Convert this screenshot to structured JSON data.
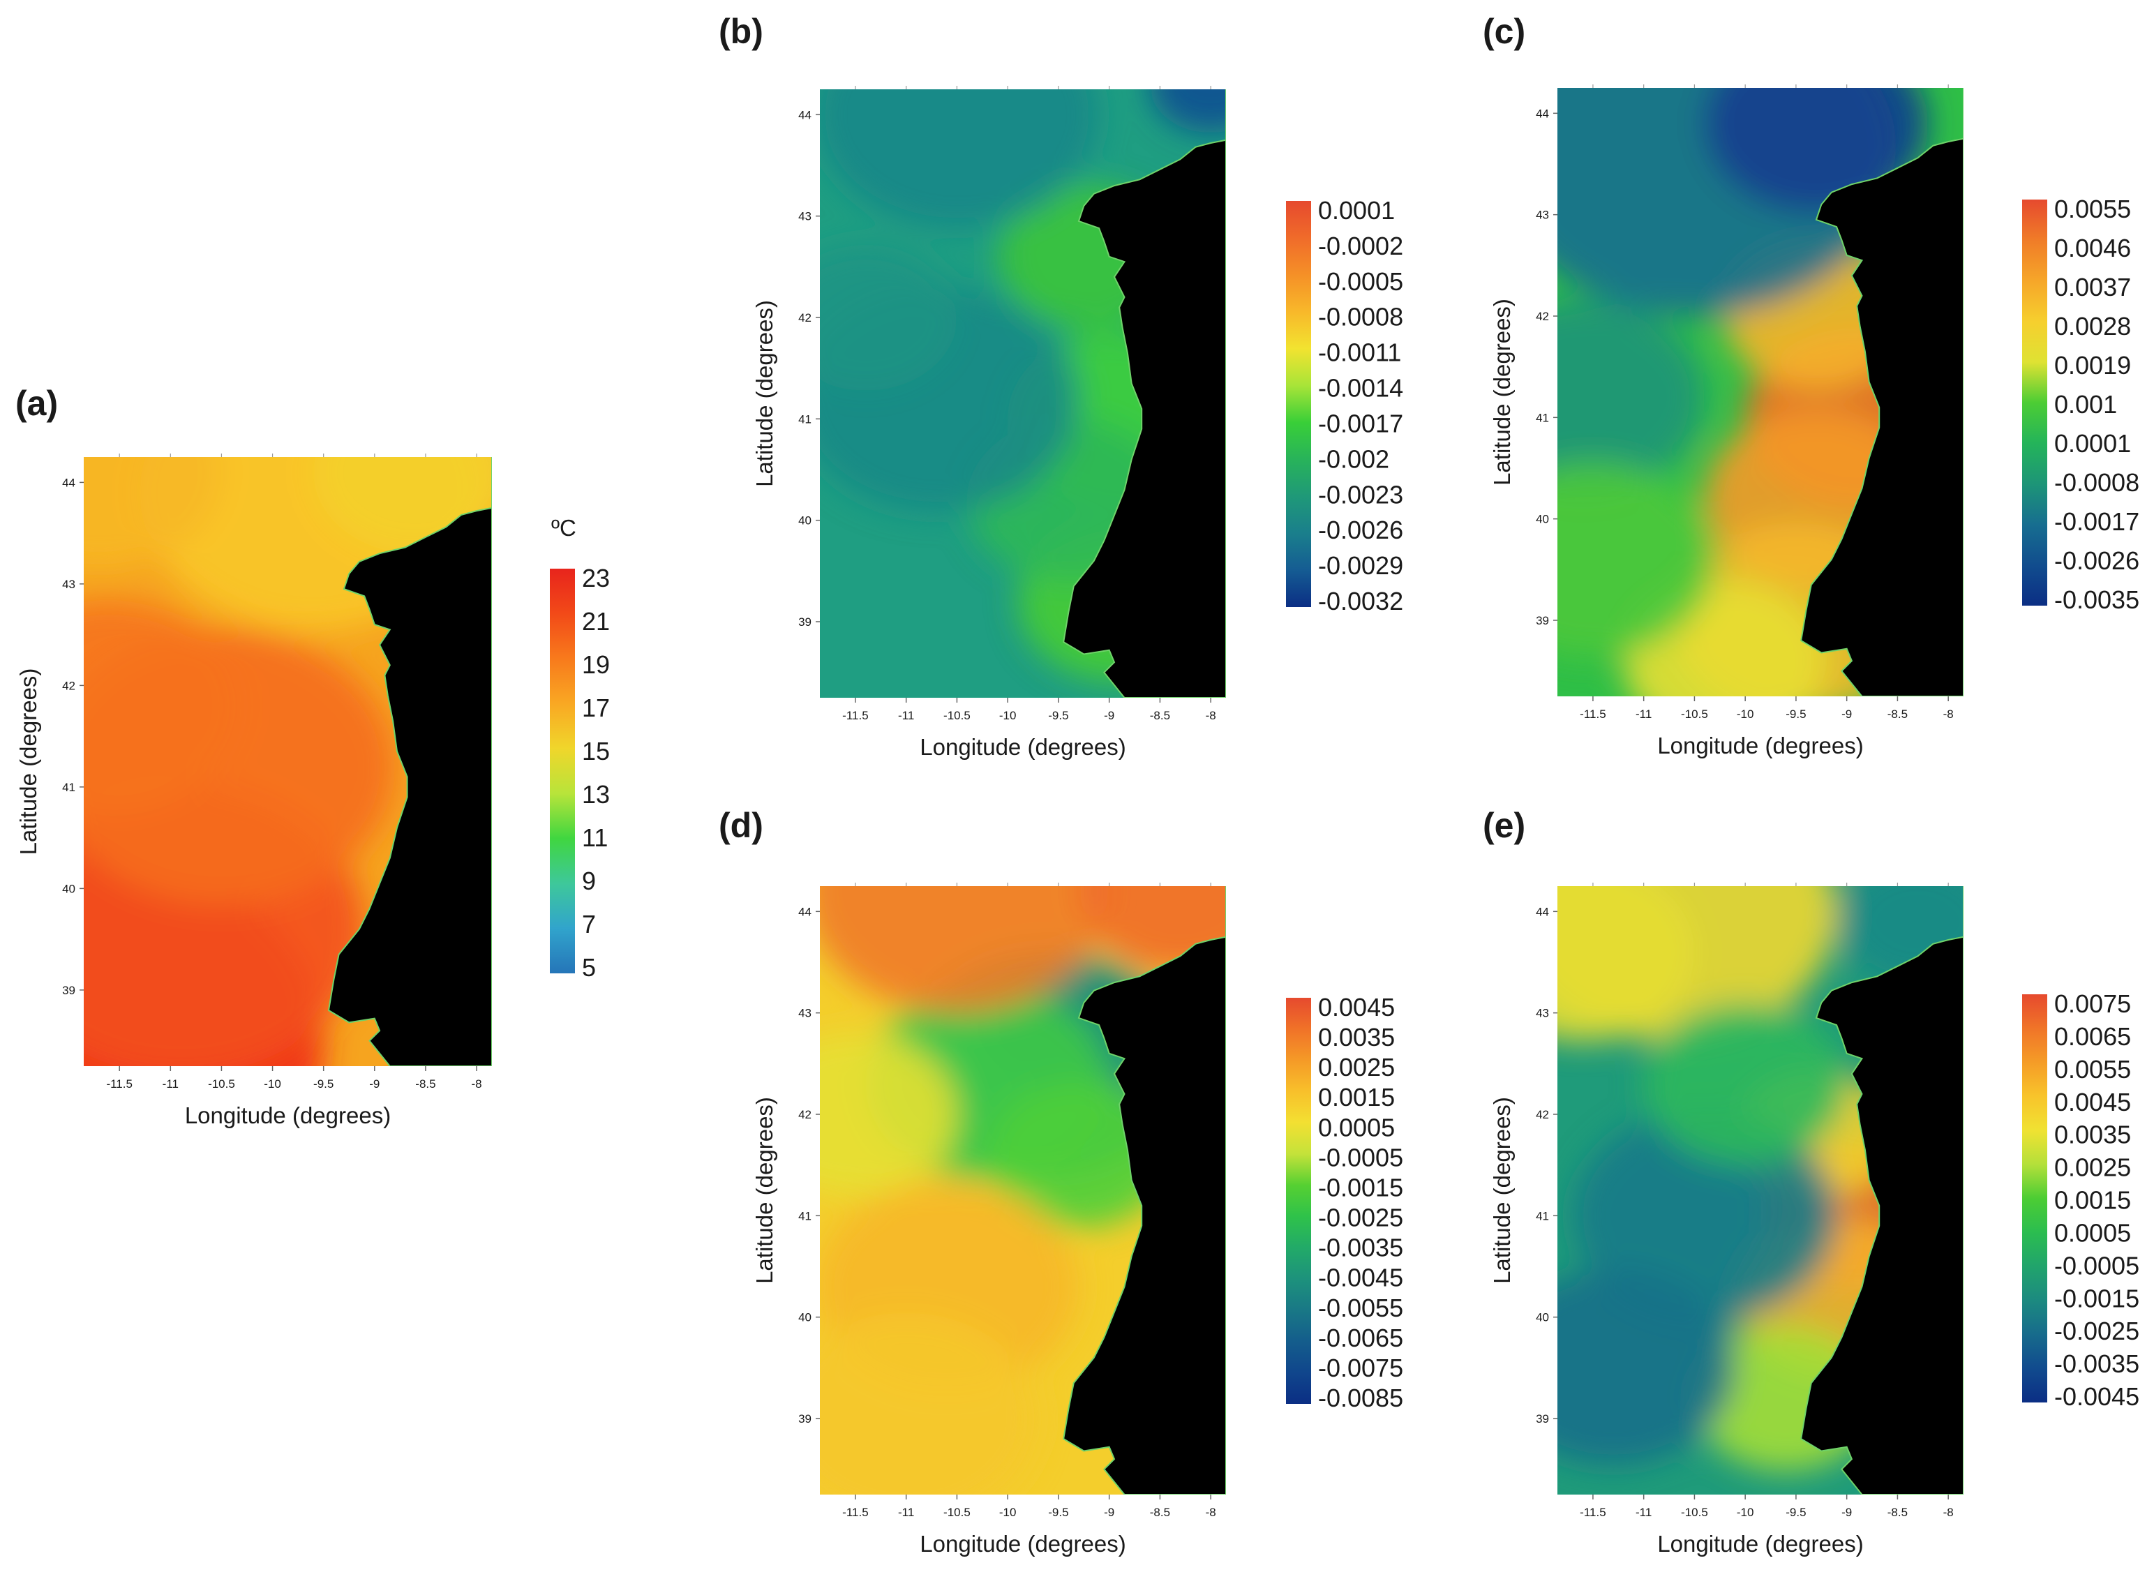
{
  "chart_data": [
    {
      "type": "heatmap",
      "panel": "(a)",
      "xlabel": "Longitude (degrees)",
      "ylabel": "Latitude (degrees)",
      "xticks": [
        "-11.5",
        "-11",
        "-10.5",
        "-10",
        "-9.5",
        "-9",
        "-8.5",
        "-8"
      ],
      "yticks": [
        "44",
        "43",
        "42",
        "41",
        "40",
        "39"
      ],
      "xlim": [
        -11.85,
        -7.85
      ],
      "ylim": [
        38.25,
        44.25
      ],
      "colorbar": {
        "unit": "ºC",
        "labels": [
          "23",
          "21",
          "19",
          "17",
          "15",
          "13",
          "11",
          "9",
          "7",
          "5"
        ],
        "colors": [
          "#e8241c",
          "#f24a18",
          "#f87a1c",
          "#f9a823",
          "#f0d62b",
          "#b8e43a",
          "#40d640",
          "#3ec89a",
          "#31a4cc",
          "#2575b8"
        ]
      },
      "field": {
        "base": "#f6a41f",
        "blobs": [
          {
            "lon": -11.8,
            "lat": 38.5,
            "r": 2.3,
            "c": "#f02818"
          },
          {
            "lon": -10.9,
            "lat": 39.6,
            "r": 1.8,
            "c": "#f3501c"
          },
          {
            "lon": -10.5,
            "lat": 41.2,
            "r": 1.7,
            "c": "#f56d1e"
          },
          {
            "lon": -11.6,
            "lat": 41.8,
            "r": 1.3,
            "c": "#f6731e"
          },
          {
            "lon": -9.6,
            "lat": 43.9,
            "r": 1.7,
            "c": "#f8c82a"
          },
          {
            "lon": -8.6,
            "lat": 44.1,
            "r": 1.0,
            "c": "#f4d02b"
          },
          {
            "lon": -11.7,
            "lat": 44.1,
            "r": 1.2,
            "c": "#f7b826"
          }
        ]
      }
    },
    {
      "type": "heatmap",
      "panel": "(b)",
      "xlabel": "Longitude (degrees)",
      "ylabel": "Latitude (degrees)",
      "xticks": [
        "-11.5",
        "-11",
        "-10.5",
        "-10",
        "-9.5",
        "-9",
        "-8.5",
        "-8"
      ],
      "yticks": [
        "44",
        "43",
        "42",
        "41",
        "40",
        "39"
      ],
      "xlim": [
        -11.85,
        -7.85
      ],
      "ylim": [
        38.25,
        44.25
      ],
      "colorbar": {
        "labels": [
          "0.0001",
          "-0.0002",
          "-0.0005",
          "-0.0008",
          "-0.0011",
          "-0.0014",
          "-0.0017",
          "-0.002",
          "-0.0023",
          "-0.0026",
          "-0.0029",
          "-0.0032"
        ],
        "colors": [
          "#e64a2e",
          "#f06b2a",
          "#f59027",
          "#f8b82a",
          "#f2e330",
          "#a8e438",
          "#39cf38",
          "#28b35a",
          "#1f9978",
          "#1a7f8c",
          "#155c93",
          "#0b2e84"
        ]
      },
      "field": {
        "base": "#1f9e82",
        "blobs": [
          {
            "lon": -8.9,
            "lat": 41.0,
            "r": 1.1,
            "c": "#3fcf3a"
          },
          {
            "lon": -8.9,
            "lat": 39.2,
            "r": 1.0,
            "c": "#45cc35"
          },
          {
            "lon": -9.2,
            "lat": 42.6,
            "r": 0.9,
            "c": "#3cc43c"
          },
          {
            "lon": -9.4,
            "lat": 40.2,
            "r": 1.0,
            "c": "#2fb856"
          },
          {
            "lon": -10.7,
            "lat": 41.2,
            "r": 1.4,
            "c": "#1b8a86"
          },
          {
            "lon": -11.4,
            "lat": 42.0,
            "r": 0.9,
            "c": "#1e9484"
          },
          {
            "lon": -8.0,
            "lat": 44.3,
            "r": 0.6,
            "c": "#134f92"
          },
          {
            "lon": -10.5,
            "lat": 44.0,
            "r": 1.4,
            "c": "#1b8788"
          }
        ]
      }
    },
    {
      "type": "heatmap",
      "panel": "(c)",
      "xlabel": "Longitude (degrees)",
      "ylabel": "Latitude (degrees)",
      "xticks": [
        "-11.5",
        "-11",
        "-10.5",
        "-10",
        "-9.5",
        "-9",
        "-8.5",
        "-8"
      ],
      "yticks": [
        "44",
        "43",
        "42",
        "41",
        "40",
        "39"
      ],
      "xlim": [
        -11.85,
        -7.85
      ],
      "ylim": [
        38.25,
        44.25
      ],
      "colorbar": {
        "labels": [
          "0.0055",
          "0.0046",
          "0.0037",
          "0.0028",
          "0.0019",
          "0.001",
          "0.0001",
          "-0.0008",
          "-0.0017",
          "-0.0026",
          "-0.0035"
        ],
        "colors": [
          "#e64a2e",
          "#f07c28",
          "#f6a629",
          "#f6cf2e",
          "#dfe233",
          "#4ccd34",
          "#24b45a",
          "#1d9577",
          "#176e90",
          "#114d8e",
          "#0b2e84"
        ]
      },
      "field": {
        "base": "#2fbf47",
        "blobs": [
          {
            "lon": -8.9,
            "lat": 41.0,
            "r": 1.1,
            "c": "#f26c24"
          },
          {
            "lon": -9.3,
            "lat": 40.2,
            "r": 1.1,
            "c": "#f49a28"
          },
          {
            "lon": -9.3,
            "lat": 42.0,
            "r": 0.9,
            "c": "#f5b42a"
          },
          {
            "lon": -9.5,
            "lat": 39.0,
            "r": 1.2,
            "c": "#f5b82a"
          },
          {
            "lon": -10.2,
            "lat": 38.6,
            "r": 1.0,
            "c": "#e8df34"
          },
          {
            "lon": -10.5,
            "lat": 43.6,
            "r": 2.0,
            "c": "#1a6f8f"
          },
          {
            "lon": -9.3,
            "lat": 43.9,
            "r": 1.1,
            "c": "#123f8e"
          },
          {
            "lon": -11.6,
            "lat": 41.2,
            "r": 1.2,
            "c": "#1f9478"
          },
          {
            "lon": -11.5,
            "lat": 39.6,
            "r": 1.2,
            "c": "#4cc83c"
          }
        ]
      }
    },
    {
      "type": "heatmap",
      "panel": "(d)",
      "xlabel": "Longitude (degrees)",
      "ylabel": "Latitude (degrees)",
      "xticks": [
        "-11.5",
        "-11",
        "-10.5",
        "-10",
        "-9.5",
        "-9",
        "-8.5",
        "-8"
      ],
      "yticks": [
        "44",
        "43",
        "42",
        "41",
        "40",
        "39"
      ],
      "xlim": [
        -11.85,
        -7.85
      ],
      "ylim": [
        38.25,
        44.25
      ],
      "colorbar": {
        "labels": [
          "0.0045",
          "0.0035",
          "0.0025",
          "0.0015",
          "0.0005",
          "-0.0005",
          "-0.0015",
          "-0.0025",
          "-0.0035",
          "-0.0045",
          "-0.0055",
          "-0.0065",
          "-0.0075",
          "-0.0085"
        ],
        "colors": [
          "#e64a2e",
          "#f07228",
          "#f59a27",
          "#f8c02b",
          "#f3e032",
          "#c4e23a",
          "#56d032",
          "#2fc24a",
          "#22aa68",
          "#1d927c",
          "#197886",
          "#145d8c",
          "#10468c",
          "#0b2e84"
        ]
      },
      "field": {
        "base": "#f4ce2c",
        "blobs": [
          {
            "lon": -9.4,
            "lat": 42.9,
            "r": 0.8,
            "c": "#123b8c"
          },
          {
            "lon": -9.6,
            "lat": 42.5,
            "r": 1.4,
            "c": "#1f9a76"
          },
          {
            "lon": -10.2,
            "lat": 42.3,
            "r": 1.2,
            "c": "#3ec948"
          },
          {
            "lon": -9.3,
            "lat": 41.6,
            "r": 0.9,
            "c": "#4ecf3a"
          },
          {
            "lon": -11.5,
            "lat": 42.0,
            "r": 1.0,
            "c": "#e6e034"
          },
          {
            "lon": -10.6,
            "lat": 40.3,
            "r": 1.3,
            "c": "#f6b82a"
          },
          {
            "lon": -10.5,
            "lat": 44.2,
            "r": 1.5,
            "c": "#f07c28"
          },
          {
            "lon": -8.3,
            "lat": 44.2,
            "r": 1.0,
            "c": "#ef6c2a"
          },
          {
            "lon": -11.0,
            "lat": 39.0,
            "r": 1.3,
            "c": "#f5c82c"
          }
        ]
      }
    },
    {
      "type": "heatmap",
      "panel": "(e)",
      "xlabel": "Longitude (degrees)",
      "ylabel": "Latitude (degrees)",
      "xticks": [
        "-11.5",
        "-11",
        "-10.5",
        "-10",
        "-9.5",
        "-9",
        "-8.5",
        "-8"
      ],
      "yticks": [
        "44",
        "43",
        "42",
        "41",
        "40",
        "39"
      ],
      "xlim": [
        -11.85,
        -7.85
      ],
      "ylim": [
        38.25,
        44.25
      ],
      "colorbar": {
        "labels": [
          "0.0075",
          "0.0065",
          "0.0055",
          "0.0045",
          "0.0035",
          "0.0025",
          "0.0015",
          "0.0005",
          "-0.0005",
          "-0.0015",
          "-0.0025",
          "-0.0035",
          "-0.0045"
        ],
        "colors": [
          "#e64a2e",
          "#f07428",
          "#f59c27",
          "#f8c42b",
          "#f0e232",
          "#b4e03a",
          "#4ccd34",
          "#2bbd50",
          "#21a46c",
          "#1c8a80",
          "#176b8c",
          "#114b8e",
          "#0b2e84"
        ]
      },
      "field": {
        "base": "#1f9b7a",
        "blobs": [
          {
            "lon": -8.9,
            "lat": 41.0,
            "r": 0.9,
            "c": "#f26a24"
          },
          {
            "lon": -9.1,
            "lat": 40.2,
            "r": 1.0,
            "c": "#f5b02a"
          },
          {
            "lon": -9.3,
            "lat": 41.8,
            "r": 0.8,
            "c": "#f3d22e"
          },
          {
            "lon": -9.6,
            "lat": 39.2,
            "r": 0.9,
            "c": "#a4de38"
          },
          {
            "lon": -10.7,
            "lat": 44.0,
            "r": 1.6,
            "c": "#f0d830"
          },
          {
            "lon": -11.6,
            "lat": 43.6,
            "r": 1.1,
            "c": "#e6de33"
          },
          {
            "lon": -10.4,
            "lat": 41.0,
            "r": 1.3,
            "c": "#177a88"
          },
          {
            "lon": -11.3,
            "lat": 39.5,
            "r": 1.2,
            "c": "#19708a"
          },
          {
            "lon": -8.3,
            "lat": 43.9,
            "r": 0.8,
            "c": "#1a8a86"
          },
          {
            "lon": -10.0,
            "lat": 42.3,
            "r": 1.0,
            "c": "#2cb85c"
          }
        ]
      }
    }
  ]
}
